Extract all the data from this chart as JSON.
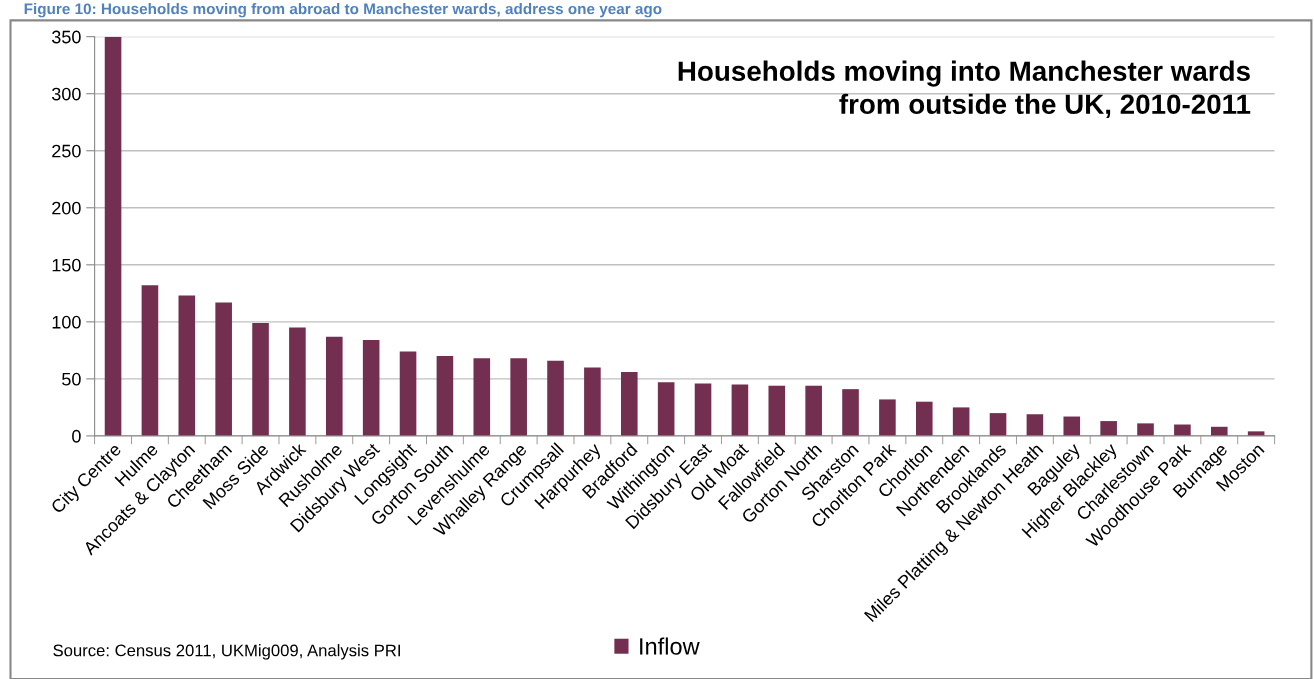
{
  "chart_data": {
    "type": "bar",
    "title": "Households moving into Manchester wards\nfrom outside the UK, 2010-2011",
    "categories": [
      "City Centre",
      "Hulme",
      "Ancoats & Clayton",
      "Cheetham",
      "Moss Side",
      "Ardwick",
      "Rusholme",
      "Didsbury West",
      "Longsight",
      "Gorton South",
      "Levenshulme",
      "Whalley Range",
      "Crumpsall",
      "Harpurhey",
      "Bradford",
      "Withington",
      "Didsbury East",
      "Old Moat",
      "Fallowfield",
      "Gorton North",
      "Sharston",
      "Chorlton Park",
      "Chorlton",
      "Northenden",
      "Brooklands",
      "Miles Platting & Newton Heath",
      "Baguley",
      "Higher Blackley",
      "Charlestown",
      "Woodhouse Park",
      "Burnage",
      "Moston"
    ],
    "series": [
      {
        "name": "Inflow",
        "color": "#722f4f",
        "values": [
          350,
          132,
          123,
          117,
          99,
          95,
          87,
          84,
          74,
          70,
          68,
          68,
          66,
          60,
          56,
          47,
          46,
          45,
          44,
          44,
          41,
          32,
          30,
          25,
          20,
          19,
          17,
          13,
          11,
          10,
          8,
          4
        ]
      }
    ],
    "ylim": [
      0,
      350
    ],
    "yticks": [
      0,
      50,
      100,
      150,
      200,
      250,
      300,
      350
    ],
    "grid": "y",
    "legend": "bottom",
    "annotations": [
      "Figure 10: Households moving from abroad to Manchester wards, address one year ago",
      "Source: Census 2011, UKMig009, Analysis PRI"
    ]
  }
}
